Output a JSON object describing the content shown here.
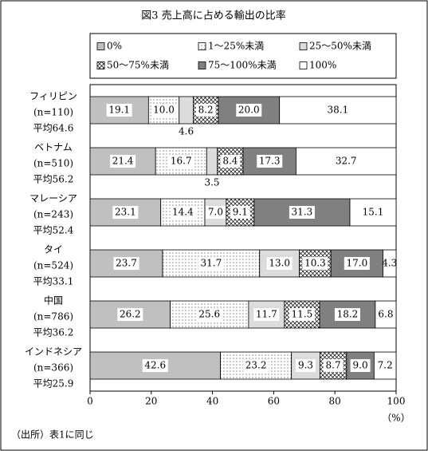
{
  "chart_data": {
    "type": "stacked-barh",
    "title": "図3 売上高に占める輸出の比率",
    "categories": [
      [
        "フィリピン",
        "(n=110)",
        "平均64.6"
      ],
      [
        "ベトナム",
        "(n=510)",
        "平均56.2"
      ],
      [
        "マレーシア",
        "(n=243)",
        "平均52.4"
      ],
      [
        "タイ",
        "(n=524)",
        "平均33.1"
      ],
      [
        "中国",
        "(n=786)",
        "平均36.2"
      ],
      [
        "インドネシア",
        "(n=366)",
        "平均25.9"
      ]
    ],
    "series": [
      {
        "name": "0%",
        "color": "#c0c0c0",
        "values": [
          19.1,
          21.4,
          23.1,
          23.7,
          26.2,
          42.6
        ],
        "value_labels": [
          "19.1",
          "21.4",
          "23.1",
          "23.7",
          "26.2",
          "42.6"
        ]
      },
      {
        "name": "1～25%未満",
        "color": "#ffffff",
        "pattern": "dots",
        "values": [
          10.0,
          16.7,
          14.4,
          31.7,
          25.6,
          23.2
        ],
        "value_labels": [
          "10.0",
          "16.7",
          "14.4",
          "31.7",
          "25.6",
          "23.2"
        ]
      },
      {
        "name": "25～50%未満",
        "color": "#dcdcdc",
        "values": [
          4.6,
          3.5,
          7.0,
          13.0,
          11.7,
          9.3
        ],
        "value_labels": [
          "4.6",
          "3.5",
          "7.0",
          "13.0",
          "11.7",
          "9.3"
        ]
      },
      {
        "name": "50～75%未満",
        "color": "#ffffff",
        "pattern": "hatch",
        "values": [
          8.2,
          8.4,
          9.1,
          10.3,
          11.5,
          8.7
        ],
        "value_labels": [
          "8.2",
          "8.4",
          "9.1",
          "10.3",
          "11.5",
          "8.7"
        ]
      },
      {
        "name": "75～100%未満",
        "color": "#808080",
        "values": [
          20.0,
          17.3,
          31.3,
          17.0,
          18.2,
          9.0
        ],
        "value_labels": [
          "20.0",
          "17.3",
          "31.3",
          "17.0",
          "18.2",
          "9.0"
        ]
      },
      {
        "name": "100%",
        "color": "#ffffff",
        "values": [
          38.1,
          32.7,
          15.1,
          4.3,
          6.8,
          7.2
        ],
        "value_labels": [
          "38.1",
          "32.7",
          "15.1",
          "4.3",
          "6.8",
          "7.2"
        ]
      }
    ],
    "xlim": [
      0,
      100
    ],
    "xticks": [
      0,
      20,
      40,
      60,
      80,
      100
    ],
    "x_unit": "（%）",
    "source": "（出所）表1に同じ"
  }
}
